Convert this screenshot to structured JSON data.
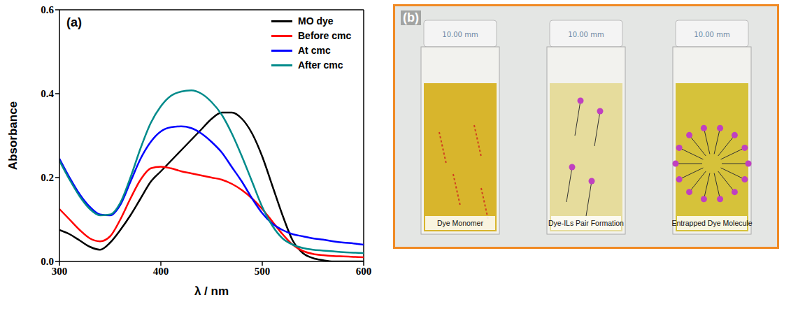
{
  "chart_data": {
    "type": "line",
    "title": "(a)",
    "x_label": "λ / nm",
    "y_label": "Absorbance",
    "x": [
      300,
      310,
      320,
      330,
      340,
      350,
      360,
      370,
      380,
      390,
      400,
      410,
      420,
      430,
      440,
      450,
      460,
      470,
      480,
      490,
      500,
      510,
      520,
      530,
      540,
      550,
      560,
      570,
      580,
      590,
      600
    ],
    "xlim": [
      300,
      600
    ],
    "xticks": [
      300,
      400,
      500,
      600
    ],
    "ylim": [
      0,
      0.6
    ],
    "yticks": [
      {
        "value": 0,
        "label": "0.0"
      },
      0.2,
      0.4,
      0.6
    ],
    "legend": "upper-right",
    "grid": false,
    "series": [
      {
        "name": "MO dye",
        "color": "#000000",
        "values": [
          0.075,
          0.065,
          0.05,
          0.035,
          0.028,
          0.045,
          0.075,
          0.11,
          0.15,
          0.19,
          0.215,
          0.24,
          0.265,
          0.29,
          0.315,
          0.34,
          0.355,
          0.355,
          0.34,
          0.305,
          0.25,
          0.18,
          0.11,
          0.05,
          0.02,
          0.008,
          0.003,
          0,
          0,
          0,
          0
        ]
      },
      {
        "name": "Before cmc",
        "color": "#ff0000",
        "values": [
          0.125,
          0.1,
          0.075,
          0.055,
          0.048,
          0.06,
          0.1,
          0.15,
          0.195,
          0.222,
          0.226,
          0.222,
          0.215,
          0.21,
          0.205,
          0.2,
          0.195,
          0.185,
          0.17,
          0.15,
          0.125,
          0.095,
          0.065,
          0.04,
          0.025,
          0.018,
          0.015,
          0.013,
          0.012,
          0.011,
          0.01
        ]
      },
      {
        "name": "At cmc",
        "color": "#0000ff",
        "values": [
          0.245,
          0.2,
          0.16,
          0.13,
          0.112,
          0.11,
          0.135,
          0.19,
          0.245,
          0.285,
          0.31,
          0.32,
          0.322,
          0.318,
          0.305,
          0.285,
          0.26,
          0.225,
          0.19,
          0.15,
          0.115,
          0.09,
          0.075,
          0.065,
          0.06,
          0.055,
          0.052,
          0.048,
          0.045,
          0.043,
          0.04
        ]
      },
      {
        "name": "After cmc",
        "color": "#008b8b",
        "values": [
          0.24,
          0.195,
          0.155,
          0.125,
          0.11,
          0.112,
          0.14,
          0.2,
          0.27,
          0.33,
          0.37,
          0.395,
          0.405,
          0.408,
          0.4,
          0.38,
          0.35,
          0.305,
          0.25,
          0.19,
          0.13,
          0.085,
          0.055,
          0.04,
          0.032,
          0.028,
          0.026,
          0.024,
          0.022,
          0.021,
          0.02
        ]
      }
    ]
  },
  "panel_b": {
    "label": "(b)",
    "cap_text": "10.00 mm",
    "cuvettes": [
      {
        "caption": "Dye Monomer"
      },
      {
        "caption": "Dye-ILs Pair Formation"
      },
      {
        "caption": "Entrapped Dye Molecule"
      }
    ]
  }
}
